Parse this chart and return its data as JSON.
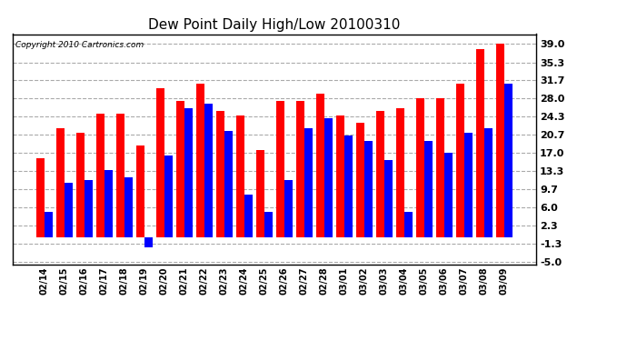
{
  "title": "Dew Point Daily High/Low 20100310",
  "copyright": "Copyright 2010 Cartronics.com",
  "dates": [
    "02/14",
    "02/15",
    "02/16",
    "02/17",
    "02/18",
    "02/19",
    "02/20",
    "02/21",
    "02/22",
    "02/23",
    "02/24",
    "02/25",
    "02/26",
    "02/27",
    "02/28",
    "03/01",
    "03/02",
    "03/03",
    "03/04",
    "03/05",
    "03/06",
    "03/07",
    "03/08",
    "03/09"
  ],
  "highs": [
    16.0,
    22.0,
    21.0,
    25.0,
    25.0,
    18.5,
    30.0,
    27.5,
    31.0,
    25.5,
    24.5,
    17.5,
    27.5,
    27.5,
    29.0,
    24.5,
    23.0,
    25.5,
    26.0,
    28.0,
    28.0,
    31.0,
    38.0,
    39.0
  ],
  "lows": [
    5.0,
    11.0,
    11.5,
    13.5,
    12.0,
    -2.0,
    16.5,
    26.0,
    27.0,
    21.5,
    8.5,
    5.0,
    11.5,
    22.0,
    24.0,
    20.5,
    19.5,
    15.5,
    5.0,
    19.5,
    17.0,
    21.0,
    22.0,
    31.0
  ],
  "bar_color_high": "#ff0000",
  "bar_color_low": "#0000ff",
  "bg_color": "#ffffff",
  "grid_color": "#aaaaaa",
  "yticks": [
    -5.0,
    -1.3,
    2.3,
    6.0,
    9.7,
    13.3,
    17.0,
    20.7,
    24.3,
    28.0,
    31.7,
    35.3,
    39.0
  ],
  "ylim": [
    -5.5,
    41.0
  ],
  "figsize": [
    6.9,
    3.75
  ],
  "dpi": 100
}
